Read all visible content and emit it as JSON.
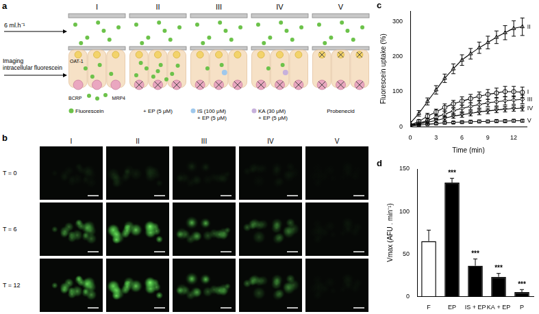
{
  "panels": {
    "a": {
      "label": "a",
      "columns": [
        "I",
        "II",
        "III",
        "IV",
        "V"
      ],
      "flow": "6 ml.h⁻¹",
      "imaging": [
        "Imaging",
        "intracellular fluorescein"
      ],
      "transporters": [
        "OAT-1",
        "BCRP",
        "MRP4"
      ],
      "conditions": [
        [
          "Fluorescein"
        ],
        [
          "+ EP (5 μM)"
        ],
        [
          "IS (100 μM)",
          "+ EP (5 μM)"
        ],
        [
          "KA (30 μM)",
          "+ EP (5 μM)"
        ],
        [
          "Probenecid"
        ]
      ]
    },
    "b": {
      "label": "b",
      "columns": [
        "I",
        "II",
        "III",
        "IV",
        "V"
      ],
      "times": [
        "T = 0",
        "T = 6",
        "T = 12"
      ]
    },
    "c": {
      "label": "c"
    },
    "d": {
      "label": "d"
    }
  },
  "chart_data": [
    {
      "type": "line",
      "x_label": "Time (min)",
      "y_label": "Fluorescein uptake (%)",
      "x": [
        0,
        1,
        2,
        3,
        4,
        5,
        6,
        7,
        8,
        9,
        10,
        11,
        12,
        13
      ],
      "xlim": [
        0,
        13.5
      ],
      "xticks": [
        0,
        3,
        6,
        9,
        12
      ],
      "ylim": [
        0,
        330
      ],
      "yticks": [
        0,
        100,
        200,
        300
      ],
      "grid": false,
      "series": [
        {
          "name": "I",
          "color": "#000000",
          "marker": "circle",
          "values": [
            5,
            15,
            30,
            42,
            55,
            65,
            73,
            80,
            87,
            92,
            96,
            100,
            100,
            98
          ],
          "errors": [
            3,
            5,
            8,
            8,
            10,
            10,
            12,
            12,
            12,
            14,
            14,
            15,
            15,
            15
          ]
        },
        {
          "name": "II",
          "color": "#000000",
          "marker": "triangle",
          "values": [
            10,
            38,
            72,
            105,
            138,
            165,
            190,
            208,
            225,
            240,
            255,
            268,
            280,
            285
          ],
          "errors": [
            5,
            8,
            10,
            12,
            12,
            14,
            15,
            15,
            16,
            18,
            18,
            20,
            22,
            25
          ]
        },
        {
          "name": "III",
          "color": "#000000",
          "marker": "diamond",
          "values": [
            5,
            10,
            18,
            27,
            36,
            45,
            52,
            58,
            63,
            68,
            71,
            74,
            76,
            78
          ],
          "errors": [
            3,
            4,
            6,
            6,
            8,
            8,
            10,
            10,
            10,
            10,
            12,
            12,
            12,
            12
          ]
        },
        {
          "name": "IV",
          "color": "#000000",
          "marker": "triangle_down",
          "values": [
            3,
            8,
            13,
            18,
            24,
            30,
            34,
            38,
            42,
            45,
            48,
            50,
            52,
            53
          ],
          "errors": [
            2,
            3,
            4,
            5,
            6,
            6,
            7,
            7,
            8,
            8,
            8,
            8,
            8,
            8
          ]
        },
        {
          "name": "V",
          "color": "#000000",
          "marker": "square",
          "values": [
            2,
            5,
            7,
            9,
            11,
            12,
            13,
            14,
            15,
            15,
            16,
            16,
            17,
            17
          ],
          "errors": [
            2,
            2,
            2,
            3,
            3,
            3,
            3,
            4,
            4,
            4,
            4,
            4,
            4,
            4
          ]
        }
      ]
    },
    {
      "type": "bar",
      "y_label": "Vmax (AFU . min⁻¹)",
      "categories": [
        "F",
        "EP",
        "IS + EP",
        "KA + EP",
        "P"
      ],
      "values": [
        65,
        134,
        36,
        23,
        5
      ],
      "errors": [
        13,
        5,
        8,
        4,
        3
      ],
      "colors": [
        "#ffffff",
        "#000000",
        "#000000",
        "#000000",
        "#000000"
      ],
      "ylim": [
        0,
        150
      ],
      "yticks": [
        0,
        50,
        100,
        150
      ],
      "grid": false,
      "annotations": [
        {
          "category": "EP",
          "text": "***"
        },
        {
          "category": "IS + EP",
          "text": "***"
        },
        {
          "category": "KA + EP",
          "text": "***"
        },
        {
          "category": "P",
          "text": "***"
        }
      ]
    }
  ]
}
